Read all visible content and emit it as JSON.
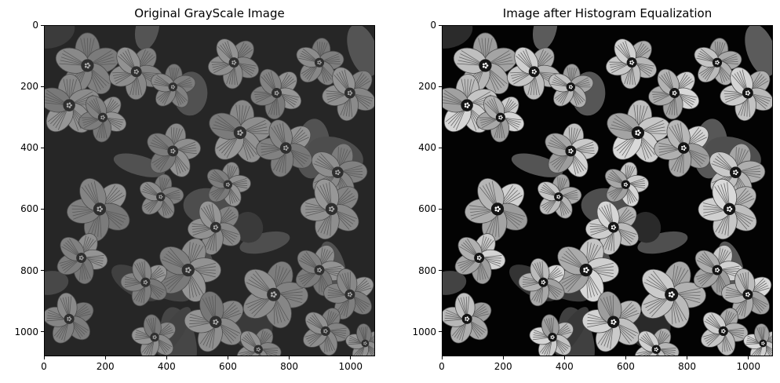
{
  "chart_data": [
    {
      "type": "image",
      "title": "Original GrayScale Image",
      "xlim": [
        0,
        1080
      ],
      "ylim": [
        1080,
        0
      ],
      "xticks": [
        0,
        200,
        400,
        600,
        800,
        1000
      ],
      "yticks": [
        0,
        200,
        400,
        600,
        800,
        1000
      ],
      "xtick_labels": [
        "0",
        "200",
        "400",
        "600",
        "800",
        "1000"
      ],
      "ytick_labels": [
        "0",
        "200",
        "400",
        "600",
        "800",
        "1000"
      ],
      "colormap": "gray",
      "content": "grayscale photo of many pale flowers with dark centers and radiating veins on a dark background",
      "style": {
        "brightness": 0.78,
        "contrast": 0.85
      }
    },
    {
      "type": "image",
      "title": "Image after Histogram Equalization",
      "xlim": [
        0,
        1080
      ],
      "ylim": [
        1080,
        0
      ],
      "xticks": [
        0,
        200,
        400,
        600,
        800,
        1000
      ],
      "yticks": [
        0,
        200,
        400,
        600,
        800,
        1000
      ],
      "xtick_labels": [
        "0",
        "200",
        "400",
        "600",
        "800",
        "1000"
      ],
      "ytick_labels": [
        "0",
        "200",
        "400",
        "600",
        "800",
        "1000"
      ],
      "colormap": "gray",
      "content": "same flower photo with stretched contrast: brighter petals, deeper shadows",
      "style": {
        "brightness": 1.0,
        "contrast": 1.25
      }
    }
  ]
}
